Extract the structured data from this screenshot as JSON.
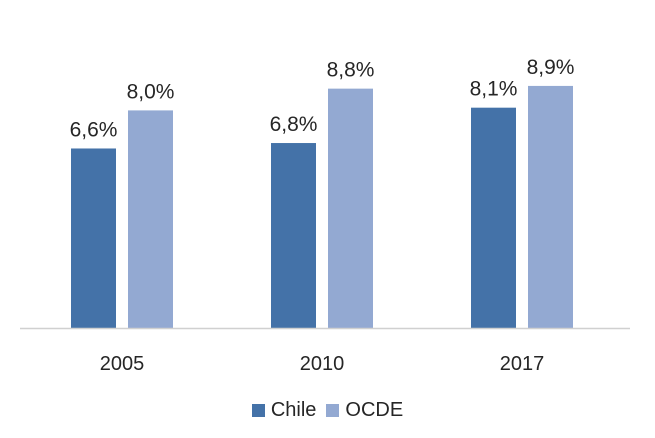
{
  "chart_data": {
    "type": "bar",
    "categories": [
      "2005",
      "2010",
      "2017"
    ],
    "series": [
      {
        "name": "Chile",
        "values": [
          6.6,
          6.8,
          8.1
        ],
        "labels": [
          "6,6%",
          "6,8%",
          "8,1%"
        ],
        "color": "#4472a8"
      },
      {
        "name": "OCDE",
        "values": [
          8.0,
          8.8,
          8.9
        ],
        "labels": [
          "8,0%",
          "8,8%",
          "8,9%"
        ],
        "color": "#93a9d2"
      }
    ],
    "ylim": [
      0,
      9.0
    ],
    "grid": false,
    "legend_position": "bottom"
  }
}
